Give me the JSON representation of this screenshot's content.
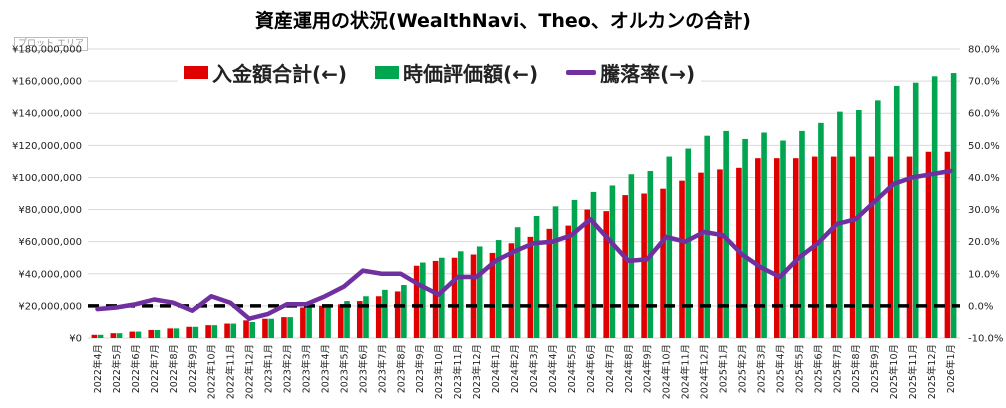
{
  "chart_data": {
    "type": "bar",
    "title": "資産運用の状況(WealthNavi、Theo、オルカンの合計)",
    "plot_area_label": "プロット エリア",
    "categories": [
      "2022年4月",
      "2022年5月",
      "2022年6月",
      "2022年7月",
      "2022年8月",
      "2022年9月",
      "2022年10月",
      "2022年11月",
      "2022年12月",
      "2023年1月",
      "2023年2月",
      "2023年3月",
      "2023年4月",
      "2023年5月",
      "2023年6月",
      "2023年7月",
      "2023年8月",
      "2023年9月",
      "2023年10月",
      "2023年11月",
      "2023年12月",
      "2024年1月",
      "2024年2月",
      "2024年3月",
      "2024年4月",
      "2024年5月",
      "2024年6月",
      "2024年7月",
      "2024年8月",
      "2024年9月",
      "2024年10月",
      "2024年11月",
      "2024年12月",
      "2025年1月",
      "2025年2月",
      "2025年3月",
      "2025年4月",
      "2025年5月",
      "2025年6月",
      "2025年7月",
      "2025年8月",
      "2025年9月",
      "2025年10月",
      "2025年11月",
      "2025年12月",
      "2026年1月"
    ],
    "series": [
      {
        "name": "入金額合計(←)",
        "type": "bar",
        "axis": "left",
        "color": "#e00000",
        "values": [
          2000000,
          3000000,
          4000000,
          5000000,
          6000000,
          7000000,
          8000000,
          9000000,
          11000000,
          12000000,
          13000000,
          19000000,
          20000000,
          21000000,
          23000000,
          26000000,
          29000000,
          45000000,
          48000000,
          50000000,
          52000000,
          53000000,
          59000000,
          63000000,
          68000000,
          70000000,
          80000000,
          79000000,
          89000000,
          90000000,
          93000000,
          98000000,
          103000000,
          105000000,
          106000000,
          112000000,
          112000000,
          112000000,
          113000000,
          113000000,
          113000000,
          113000000,
          113000000,
          113000000,
          116000000,
          116000000
        ]
      },
      {
        "name": "時価評価額(←)",
        "type": "bar",
        "axis": "left",
        "color": "#00a550",
        "values": [
          2000000,
          3000000,
          4000000,
          5000000,
          6000000,
          7000000,
          8000000,
          9000000,
          10000000,
          12000000,
          13000000,
          19000000,
          21000000,
          23000000,
          26000000,
          30000000,
          33000000,
          47000000,
          50000000,
          54000000,
          57000000,
          61000000,
          69000000,
          76000000,
          82000000,
          86000000,
          91000000,
          95000000,
          102000000,
          104000000,
          113000000,
          118000000,
          126000000,
          129000000,
          124000000,
          128000000,
          123000000,
          129000000,
          134000000,
          141000000,
          142000000,
          148000000,
          157000000,
          159000000,
          163000000,
          165000000
        ]
      },
      {
        "name": "騰落率(→)",
        "type": "line",
        "axis": "right",
        "color": "#7030a0",
        "values": [
          -1.0,
          -0.5,
          0.5,
          2.0,
          1.0,
          -1.5,
          3.0,
          1.0,
          -4.0,
          -2.5,
          0.5,
          0.5,
          3.0,
          6.0,
          11.0,
          10.0,
          10.0,
          6.5,
          3.5,
          9.0,
          9.0,
          14.0,
          17.0,
          19.5,
          20.0,
          22.0,
          27.0,
          20.5,
          14.0,
          14.5,
          21.5,
          20.0,
          23.0,
          22.0,
          16.0,
          12.0,
          9.0,
          15.0,
          19.5,
          25.5,
          27.0,
          32.5,
          38.0,
          40.0,
          41.0,
          42.0
        ]
      },
      {
        "name": "",
        "type": "line",
        "axis": "right",
        "style": "dashed",
        "color": "#000000",
        "values": [
          0,
          0,
          0,
          0,
          0,
          0,
          0,
          0,
          0,
          0,
          0,
          0,
          0,
          0,
          0,
          0,
          0,
          0,
          0,
          0,
          0,
          0,
          0,
          0,
          0,
          0,
          0,
          0,
          0,
          0,
          0,
          0,
          0,
          0,
          0,
          0,
          0,
          0,
          0,
          0,
          0,
          0,
          0,
          0,
          0,
          0
        ]
      }
    ],
    "y_left": {
      "min": 0,
      "max": 180000000,
      "step": 20000000,
      "tick_labels": [
        "¥0",
        "¥20,000,000",
        "¥40,000,000",
        "¥60,000,000",
        "¥80,000,000",
        "¥100,000,000",
        "¥120,000,000",
        "¥140,000,000",
        "¥160,000,000",
        "¥180,000,000"
      ]
    },
    "y_right": {
      "min": -10,
      "max": 80,
      "step": 10,
      "tick_labels": [
        "-10.0%",
        "0.0%",
        "10.0%",
        "20.0%",
        "30.0%",
        "40.0%",
        "50.0%",
        "60.0%",
        "70.0%",
        "80.0%"
      ]
    },
    "legend_position": "top",
    "grid": true
  }
}
